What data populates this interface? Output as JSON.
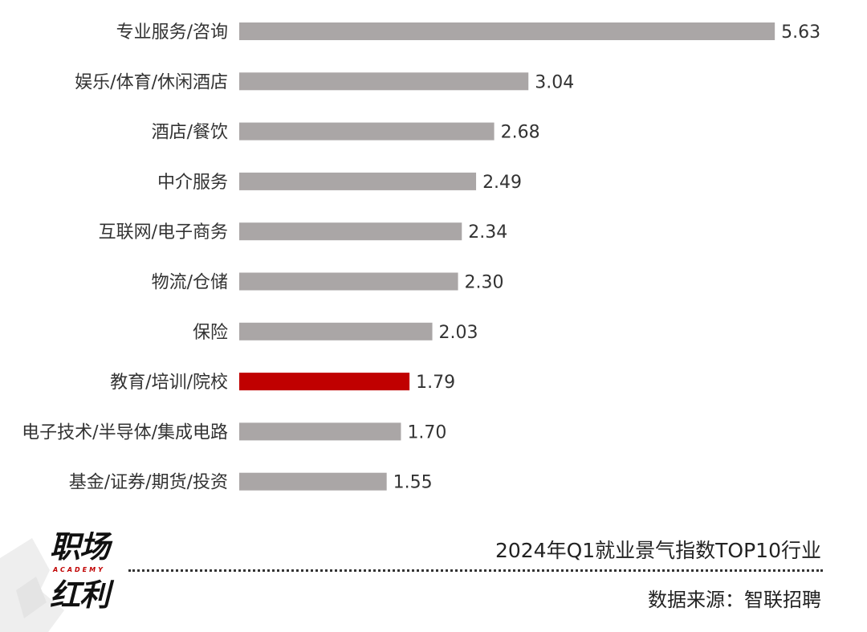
{
  "chart_data": {
    "type": "bar",
    "orientation": "horizontal",
    "categories": [
      "专业服务/咨询",
      "娱乐/体育/休闲酒店",
      "酒店/餐饮",
      "中介服务",
      "互联网/电子商务",
      "物流/仓储",
      "保险",
      "教育/培训/院校",
      "电子技术/半导体/集成电路",
      "基金/证券/期货/投资"
    ],
    "values": [
      5.63,
      3.04,
      2.68,
      2.49,
      2.34,
      2.3,
      2.03,
      1.79,
      1.7,
      1.55
    ],
    "value_labels": [
      "5.63",
      "3.04",
      "2.68",
      "2.49",
      "2.34",
      "2.30",
      "2.03",
      "1.79",
      "1.70",
      "1.55"
    ],
    "highlight_index": 7,
    "colors": {
      "bar": "#aaa6a6",
      "highlight": "#c00000"
    },
    "title": "2024年Q1就业景气指数TOP10行业",
    "xlabel": "",
    "ylabel": "",
    "grid": false,
    "legend": "none"
  },
  "footer": {
    "title": "2024年Q1就业景气指数TOP10行业",
    "source": "数据来源：智联招聘"
  },
  "logo": {
    "line1": "职场",
    "line2": "红利",
    "sub": "ACADEMY"
  }
}
